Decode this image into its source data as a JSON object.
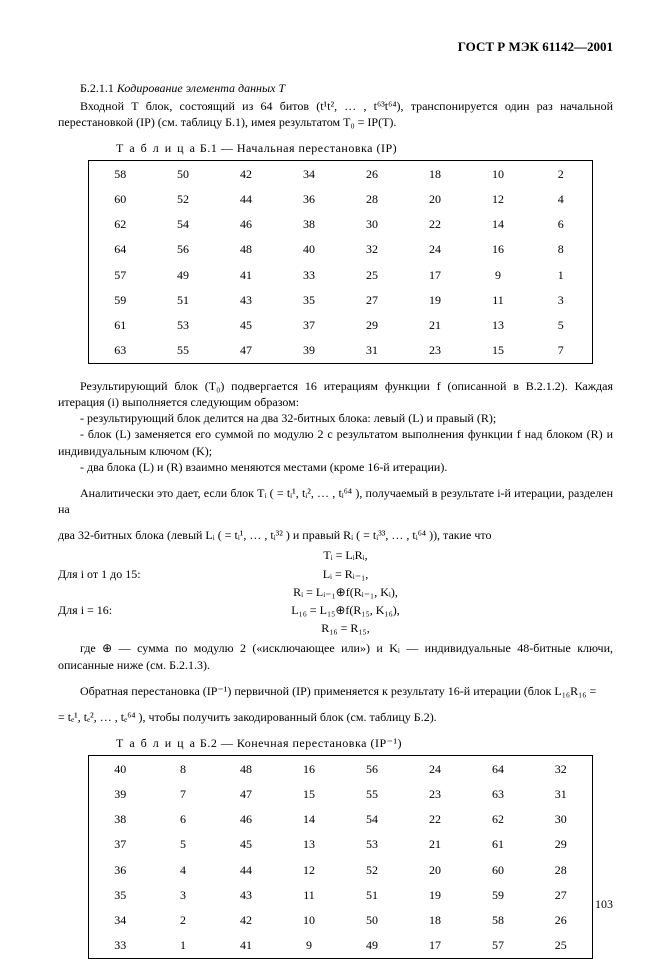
{
  "header": "ГОСТ Р МЭК 61142—2001",
  "section_ref": "Б.2.1.1",
  "section_title": "Кодирование элемента данных Т",
  "para_intro": "Входной Т блок, состоящий из 64 битов (t¹t², … , t⁶³t⁶⁴), транспонируется один раз начальной перестановкой (IP) (см. таблицу Б.1), имея результатом T₀ = IP(T).",
  "table1_caption_word": "Т а б л и ц а",
  "table1_caption_rest": "  Б.1 — Начальная перестановка (IP)",
  "table1": [
    [
      58,
      50,
      42,
      34,
      26,
      18,
      10,
      2
    ],
    [
      60,
      52,
      44,
      36,
      28,
      20,
      12,
      4
    ],
    [
      62,
      54,
      46,
      38,
      30,
      22,
      14,
      6
    ],
    [
      64,
      56,
      48,
      40,
      32,
      24,
      16,
      8
    ],
    [
      57,
      49,
      41,
      33,
      25,
      17,
      9,
      1
    ],
    [
      59,
      51,
      43,
      35,
      27,
      19,
      11,
      3
    ],
    [
      61,
      53,
      45,
      37,
      29,
      21,
      13,
      5
    ],
    [
      63,
      55,
      47,
      39,
      31,
      23,
      15,
      7
    ]
  ],
  "para_result": "Результирующий блок (T₀) подвергается 16 итерациям функции f (описанной в В.2.1.2). Каждая итерация (i) выполняется следующим образом:",
  "bullets": [
    "- результирующий блок делится на два 32-битных блока: левый (L) и правый (R);",
    "- блок (L) заменяется его суммой по модулю 2 с результатом выполнения функции f над блоком (R) и индивидуальным ключом (K);",
    "- два блока (L) и (R) взаимно меняются местами (кроме 16-й итерации)."
  ],
  "para_analytic1": "Аналитически это дает, если блок Tᵢ ( = tᵢ¹, tᵢ², … , tᵢ⁶⁴ ), получаемый в результате i-й итерации, разделен на",
  "para_analytic2": "два 32-битных блока (левый Lᵢ ( = tᵢ¹, … , tᵢ³² ) и правый Rᵢ ( = tᵢ³³, … , tᵢ⁶⁴ )), такие что",
  "eq_t": "Tᵢ = LᵢRᵢ,",
  "label_1_15": "Для i от 1 до 15:",
  "eq_L": "Lᵢ = Rᵢ₋₁,",
  "eq_R": "Rᵢ = Lᵢ₋₁⊕f(Rᵢ₋₁, Kᵢ),",
  "label_16": "Для i = 16:",
  "eq_L16": "L₁₆ = L₁₅⊕f(R₁₅, K₁₆),",
  "eq_R16": "R₁₆ = R₁₅,",
  "para_where": "где ⊕ — сумма по модулю 2 («исключающее или») и Kᵢ — индивидуальные 48-битные ключи, описанные ниже (см. Б.2.1.3).",
  "para_inverse1": "Обратная перестановка (IP⁻¹) первичной (IP) применяется к результату 16-й итерации (блок L₁₆R₁₆ =",
  "para_inverse2": "= tₑ¹, tₑ², … , tₑ⁶⁴ ), чтобы получить закодированный блок (см. таблицу Б.2).",
  "table2_caption_word": "Т а б л и ц а",
  "table2_caption_rest": "  Б.2 — Конечная перестановка (IP⁻¹)",
  "table2": [
    [
      40,
      8,
      48,
      16,
      56,
      24,
      64,
      32
    ],
    [
      39,
      7,
      47,
      15,
      55,
      23,
      63,
      31
    ],
    [
      38,
      6,
      46,
      14,
      54,
      22,
      62,
      30
    ],
    [
      37,
      5,
      45,
      13,
      53,
      21,
      61,
      29
    ],
    [
      36,
      4,
      44,
      12,
      52,
      20,
      60,
      28
    ],
    [
      35,
      3,
      43,
      11,
      51,
      19,
      59,
      27
    ],
    [
      34,
      2,
      42,
      10,
      50,
      18,
      58,
      26
    ],
    [
      33,
      1,
      41,
      9,
      49,
      17,
      57,
      25
    ]
  ],
  "page_number": "103"
}
